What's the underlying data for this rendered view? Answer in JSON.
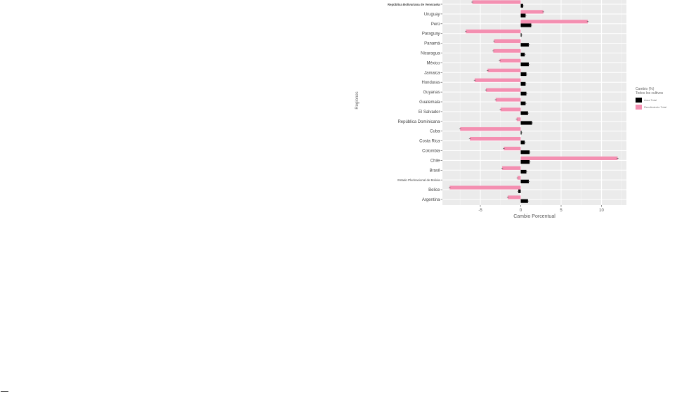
{
  "chart_data": {
    "type": "bar",
    "orientation": "horizontal",
    "title": "",
    "xlabel": "Cambio Porcentual",
    "ylabel": "Regiones",
    "xlim": [
      -9,
      13
    ],
    "x_ticks": [
      -5,
      0,
      5,
      10
    ],
    "grid": true,
    "legend_position": "right",
    "legend_title": [
      "Cambio (%)",
      "Todos los cultivos"
    ],
    "categories": [
      "República Bolivariana de Venezuela",
      "Uruguay",
      "Perú",
      "Paraguay",
      "Panamá",
      "Nicaragua",
      "México",
      "Jamaica",
      "Honduras",
      "Guyanas",
      "Guatemala",
      "El Salvador",
      "República Dominicana",
      "Cuba",
      "Costa Rica",
      "Colombia",
      "Chile",
      "Brasil",
      "Estado Plurinacional de Bolivia",
      "Belice",
      "Argentina"
    ],
    "series": [
      {
        "name": "Área Total",
        "color": "#000000",
        "values": [
          0.3,
          0.6,
          1.3,
          0.1,
          1.0,
          0.5,
          1.0,
          0.7,
          0.6,
          0.7,
          0.6,
          0.9,
          1.4,
          0.1,
          0.5,
          1.1,
          1.1,
          0.7,
          1.0,
          -0.3,
          0.9
        ]
      },
      {
        "name": "Rendimiento Total",
        "color": "#f48fb1",
        "values": [
          -6.0,
          2.8,
          8.3,
          -6.8,
          -3.3,
          -3.4,
          -2.6,
          -4.1,
          -5.7,
          -4.3,
          -3.1,
          -2.5,
          -0.5,
          -7.5,
          -6.3,
          -2.1,
          12.0,
          -2.3,
          -0.4,
          -8.8,
          -1.6
        ]
      }
    ]
  }
}
